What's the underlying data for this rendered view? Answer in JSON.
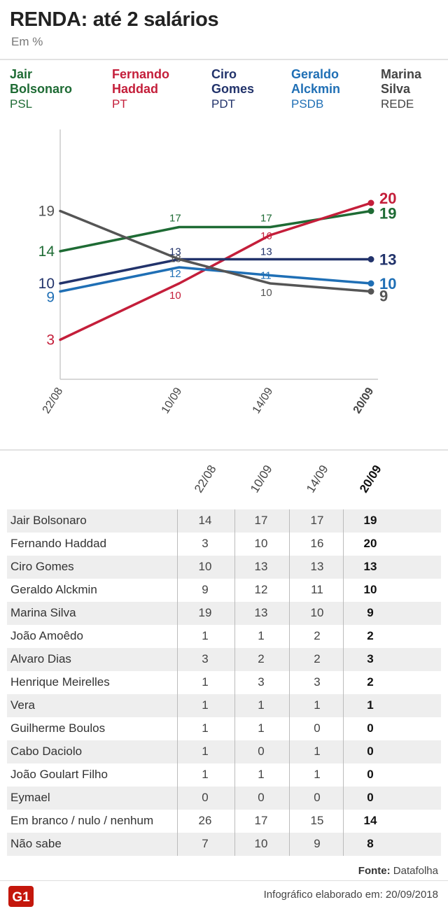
{
  "header": {
    "title": "RENDA: até 2 salários",
    "subtitle": "Em %"
  },
  "legend": [
    {
      "name": "Jair\nBolsonaro",
      "party": "PSL",
      "color": "#1e6b34"
    },
    {
      "name": "Fernando\nHaddad",
      "party": "PT",
      "color": "#c41e3a"
    },
    {
      "name": "Ciro\nGomes",
      "party": "PDT",
      "color": "#22336b"
    },
    {
      "name": "Geraldo\nAlckmin",
      "party": "PSDB",
      "color": "#1f6fb5"
    },
    {
      "name": "Marina\nSilva",
      "party": "REDE",
      "color": "#444444"
    }
  ],
  "chart_data": {
    "type": "line",
    "x": [
      "22/08",
      "10/09",
      "14/09",
      "20/09"
    ],
    "series": [
      {
        "name": "Jair Bolsonaro",
        "color": "#1e6b34",
        "values": [
          14,
          17,
          17,
          19
        ]
      },
      {
        "name": "Fernando Haddad",
        "color": "#c41e3a",
        "values": [
          3,
          10,
          16,
          20
        ]
      },
      {
        "name": "Ciro Gomes",
        "color": "#22336b",
        "values": [
          10,
          13,
          13,
          13
        ]
      },
      {
        "name": "Geraldo Alckmin",
        "color": "#1f6fb5",
        "values": [
          9,
          12,
          11,
          10
        ]
      },
      {
        "name": "Marina Silva",
        "color": "#555555",
        "values": [
          19,
          13,
          10,
          9
        ]
      }
    ]
  },
  "table": {
    "columns": [
      "22/08",
      "10/09",
      "14/09",
      "20/09"
    ],
    "rows": [
      {
        "name": "Jair Bolsonaro",
        "values": [
          "14",
          "17",
          "17",
          "19"
        ]
      },
      {
        "name": "Fernando Haddad",
        "values": [
          "3",
          "10",
          "16",
          "20"
        ]
      },
      {
        "name": "Ciro Gomes",
        "values": [
          "10",
          "13",
          "13",
          "13"
        ]
      },
      {
        "name": "Geraldo Alckmin",
        "values": [
          "9",
          "12",
          "11",
          "10"
        ]
      },
      {
        "name": "Marina Silva",
        "values": [
          "19",
          "13",
          "10",
          "9"
        ]
      },
      {
        "name": "João Amoêdo",
        "values": [
          "1",
          "1",
          "2",
          "2"
        ]
      },
      {
        "name": "Alvaro Dias",
        "values": [
          "3",
          "2",
          "2",
          "3"
        ]
      },
      {
        "name": "Henrique Meirelles",
        "values": [
          "1",
          "3",
          "3",
          "2"
        ]
      },
      {
        "name": "Vera",
        "values": [
          "1",
          "1",
          "1",
          "1"
        ]
      },
      {
        "name": "Guilherme Boulos",
        "values": [
          "1",
          "1",
          "0",
          "0"
        ]
      },
      {
        "name": "Cabo Daciolo",
        "values": [
          "1",
          "0",
          "1",
          "0"
        ]
      },
      {
        "name": "João Goulart Filho",
        "values": [
          "1",
          "1",
          "1",
          "0"
        ]
      },
      {
        "name": "Eymael",
        "values": [
          "0",
          "0",
          "0",
          "0"
        ]
      },
      {
        "name": "Em branco / nulo / nenhum",
        "values": [
          "26",
          "17",
          "15",
          "14"
        ]
      },
      {
        "name": "Não sabe",
        "values": [
          "7",
          "10",
          "9",
          "8"
        ]
      }
    ]
  },
  "footer": {
    "source_label": "Fonte:",
    "source": "Datafolha",
    "credit": "Infográfico elaborado em: 20/09/2018",
    "logo_text": "G1",
    "logo_color": "#c4170c"
  }
}
